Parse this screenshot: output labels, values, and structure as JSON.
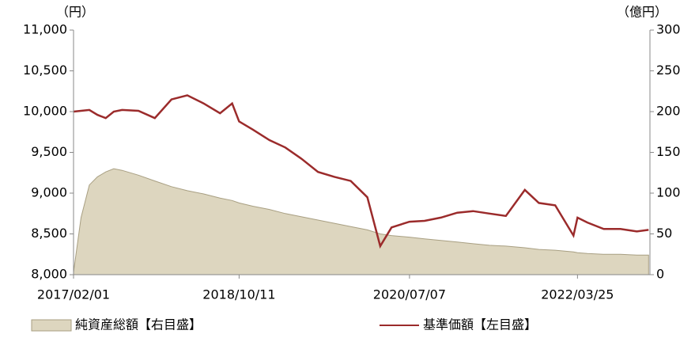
{
  "chart_data": {
    "type": "line",
    "x": [
      "2017/02/01",
      "2017/03/01",
      "2017/04/01",
      "2017/05/01",
      "2017/06/01",
      "2017/07/01",
      "2017/08/01",
      "2017/10/01",
      "2017/12/01",
      "2018/02/01",
      "2018/04/01",
      "2018/06/01",
      "2018/08/01",
      "2018/09/15",
      "2018/10/11",
      "2018/12/01",
      "2019/02/01",
      "2019/04/01",
      "2019/06/01",
      "2019/08/01",
      "2019/10/01",
      "2019/12/01",
      "2020/02/01",
      "2020/03/20",
      "2020/05/01",
      "2020/07/07",
      "2020/09/01",
      "2020/11/01",
      "2021/01/01",
      "2021/03/01",
      "2021/05/01",
      "2021/07/01",
      "2021/09/10",
      "2021/11/01",
      "2022/01/01",
      "2022/03/10",
      "2022/03/25",
      "2022/05/01",
      "2022/07/01",
      "2022/09/01",
      "2022/11/01",
      "2022/12/15"
    ],
    "series": [
      {
        "name": "純資産総額【右目盛】",
        "type": "area",
        "axis": "y2",
        "color": "#ddd6bf",
        "values": [
          3,
          70,
          110,
          120,
          126,
          130,
          128,
          122,
          115,
          108,
          103,
          99,
          94,
          91,
          88,
          84,
          80,
          75,
          71,
          67,
          63,
          59,
          55,
          50,
          48,
          46,
          44,
          42,
          40,
          38,
          36,
          35,
          33,
          31,
          30,
          28,
          27,
          26,
          25,
          25,
          24,
          24
        ]
      },
      {
        "name": "基準価額【左目盛】",
        "type": "line",
        "axis": "y",
        "color": "#9b2b2b",
        "values": [
          10000,
          10010,
          10020,
          9960,
          9920,
          10000,
          10020,
          10010,
          9920,
          10150,
          10200,
          10100,
          9980,
          10100,
          9880,
          9780,
          9650,
          9560,
          9420,
          9260,
          9200,
          9150,
          8950,
          8350,
          8580,
          8650,
          8660,
          8700,
          8760,
          8780,
          8750,
          8720,
          9040,
          8880,
          8850,
          8480,
          8700,
          8640,
          8560,
          8560,
          8530,
          8550
        ]
      }
    ],
    "xlim": [
      "2017/02/01",
      "2022/12/20"
    ],
    "xticks": [
      "2017/02/01",
      "2018/10/11",
      "2020/07/07",
      "2022/03/25"
    ],
    "ylim": [
      8000,
      11000
    ],
    "yticks": [
      {
        "value": 8000,
        "label": "8,000"
      },
      {
        "value": 8500,
        "label": "8,500"
      },
      {
        "value": 9000,
        "label": "9,000"
      },
      {
        "value": 9500,
        "label": "9,500"
      },
      {
        "value": 10000,
        "label": "10,000"
      },
      {
        "value": 10500,
        "label": "10,500"
      },
      {
        "value": 11000,
        "label": "11,000"
      }
    ],
    "y2lim": [
      0,
      300
    ],
    "y2ticks": [
      0,
      50,
      100,
      150,
      200,
      250,
      300
    ],
    "y_unit": "（円）",
    "y2_unit": "（億円）"
  }
}
